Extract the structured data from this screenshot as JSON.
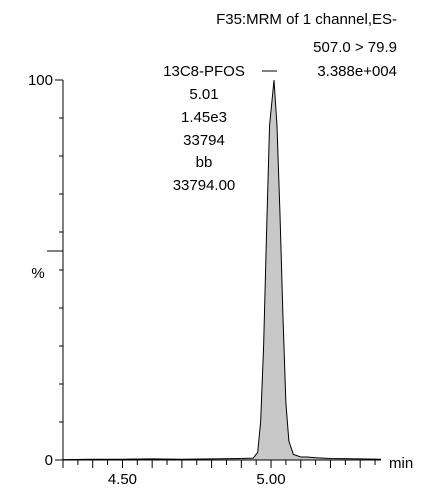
{
  "chart_data": {
    "type": "area",
    "header": [
      "F35:MRM of 1 channel,ES-",
      "507.0 > 79.9",
      "3.388e+004"
    ],
    "peak_annotation": [
      "13C8-PFOS",
      "5.01",
      "1.45e3",
      "33794",
      "bb",
      "33794.00"
    ],
    "ylabel": "%",
    "xlabel": "min",
    "xlim": [
      4.3,
      5.37
    ],
    "ylim": [
      0,
      100
    ],
    "y_ticks": [
      {
        "value": 0,
        "label": "0"
      },
      {
        "value": 100,
        "label": "100"
      }
    ],
    "x_tick_labels": [
      {
        "value": 4.5,
        "label": "4.50"
      },
      {
        "value": 5.0,
        "label": "5.00"
      }
    ],
    "x_minor_step": 0.05,
    "y_minor_step": 10,
    "series": [
      {
        "points": [
          [
            4.3,
            0.1
          ],
          [
            4.4,
            0.2
          ],
          [
            4.5,
            0.2
          ],
          [
            4.6,
            0.3
          ],
          [
            4.7,
            0.2
          ],
          [
            4.8,
            0.3
          ],
          [
            4.9,
            0.4
          ],
          [
            4.94,
            0.5
          ],
          [
            4.955,
            2
          ],
          [
            4.965,
            10
          ],
          [
            4.975,
            30
          ],
          [
            4.985,
            60
          ],
          [
            4.995,
            88
          ],
          [
            5.01,
            100
          ],
          [
            5.02,
            88
          ],
          [
            5.03,
            65
          ],
          [
            5.04,
            38
          ],
          [
            5.05,
            15
          ],
          [
            5.06,
            5
          ],
          [
            5.075,
            1.5
          ],
          [
            5.1,
            0.8
          ],
          [
            5.12,
            0.8
          ],
          [
            5.15,
            0.6
          ],
          [
            5.2,
            0.4
          ],
          [
            5.3,
            0.3
          ],
          [
            5.37,
            0.2
          ]
        ],
        "fill": "#c8c8c8",
        "stroke": "#000000"
      }
    ],
    "grid": false
  }
}
